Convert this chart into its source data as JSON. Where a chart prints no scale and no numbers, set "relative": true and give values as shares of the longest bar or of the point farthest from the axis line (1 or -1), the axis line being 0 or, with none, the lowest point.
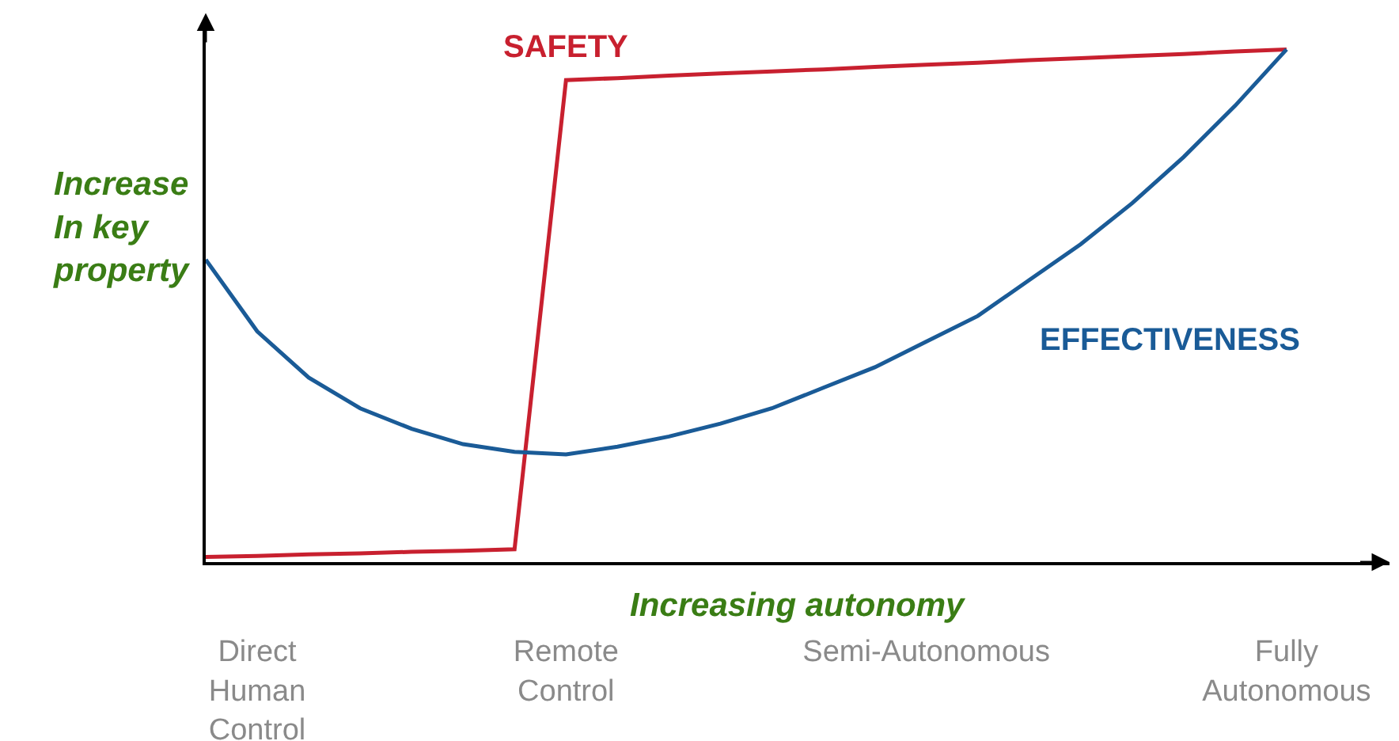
{
  "chart_data": {
    "type": "line",
    "relative": true,
    "xlabel": "Increasing autonomy",
    "ylabel": "Increase In key property",
    "categories": [
      null,
      "Direct Human Control",
      null,
      null,
      null,
      null,
      null,
      "Remote Control",
      null,
      null,
      null,
      null,
      null,
      null,
      "Semi-Autonomous",
      null,
      null,
      null,
      null,
      null,
      null,
      "Fully Autonomous",
      null,
      null
    ],
    "series": [
      {
        "name": "SAFETY",
        "color": "#c8202f",
        "values": [
          0.01,
          0.012,
          0.015,
          0.017,
          0.02,
          0.022,
          0.025,
          0.94,
          0.944,
          0.949,
          0.953,
          0.957,
          0.961,
          0.966,
          0.97,
          0.974,
          0.979,
          0.983,
          0.987,
          0.991,
          0.996,
          1.0,
          null,
          null
        ]
      },
      {
        "name": "EFFECTIVENESS",
        "color": "#1a5b97",
        "values": [
          0.59,
          0.45,
          0.36,
          0.3,
          0.26,
          0.23,
          0.215,
          0.21,
          0.225,
          0.245,
          0.27,
          0.3,
          0.34,
          0.38,
          0.43,
          0.48,
          0.55,
          0.62,
          0.7,
          0.79,
          0.89,
          1.0,
          null,
          null
        ]
      }
    ],
    "grid": false,
    "legend": false,
    "marker": "none",
    "line_style": "solid"
  }
}
